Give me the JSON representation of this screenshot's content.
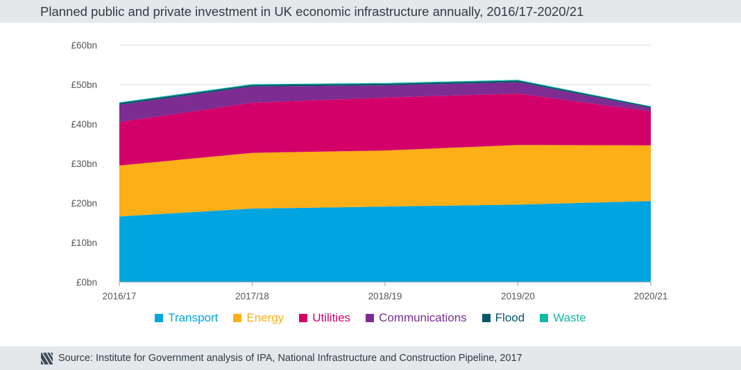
{
  "title": "Planned public and private investment in UK economic infrastructure annually, 2016/17-2020/21",
  "source": "Source: Institute for Government analysis of IPA, National Infrastructure and Construction Pipeline, 2017",
  "colors": {
    "Transport": "#00a5df",
    "Energy": "#fdaf17",
    "Utilities": "#d4006a",
    "Communications": "#7d2c91",
    "Flood": "#04576b",
    "Waste": "#14b8a6",
    "grid": "#d9d9d9",
    "axis_text": "#555555"
  },
  "chart_data": {
    "type": "area",
    "stacked": true,
    "categories": [
      "2016/17",
      "2017/18",
      "2018/19",
      "2019/20",
      "2020/21"
    ],
    "y_ticks": [
      "£0bn",
      "£10bn",
      "£20bn",
      "£30bn",
      "£40bn",
      "£50bn",
      "£60bn"
    ],
    "ylim": [
      0,
      60
    ],
    "grid": true,
    "legend_position": "bottom",
    "series": [
      {
        "name": "Transport",
        "values": [
          16.6,
          18.6,
          19.1,
          19.6,
          20.5
        ]
      },
      {
        "name": "Energy",
        "values": [
          12.9,
          14.1,
          14.2,
          15.1,
          14.1
        ]
      },
      {
        "name": "Utilities",
        "values": [
          11.0,
          12.7,
          13.4,
          13.0,
          8.6
        ]
      },
      {
        "name": "Communications",
        "values": [
          4.4,
          4.1,
          3.1,
          2.9,
          0.9
        ]
      },
      {
        "name": "Flood",
        "values": [
          0.4,
          0.4,
          0.4,
          0.4,
          0.3
        ]
      },
      {
        "name": "Waste",
        "values": [
          0.2,
          0.2,
          0.2,
          0.2,
          0.1
        ]
      }
    ]
  }
}
